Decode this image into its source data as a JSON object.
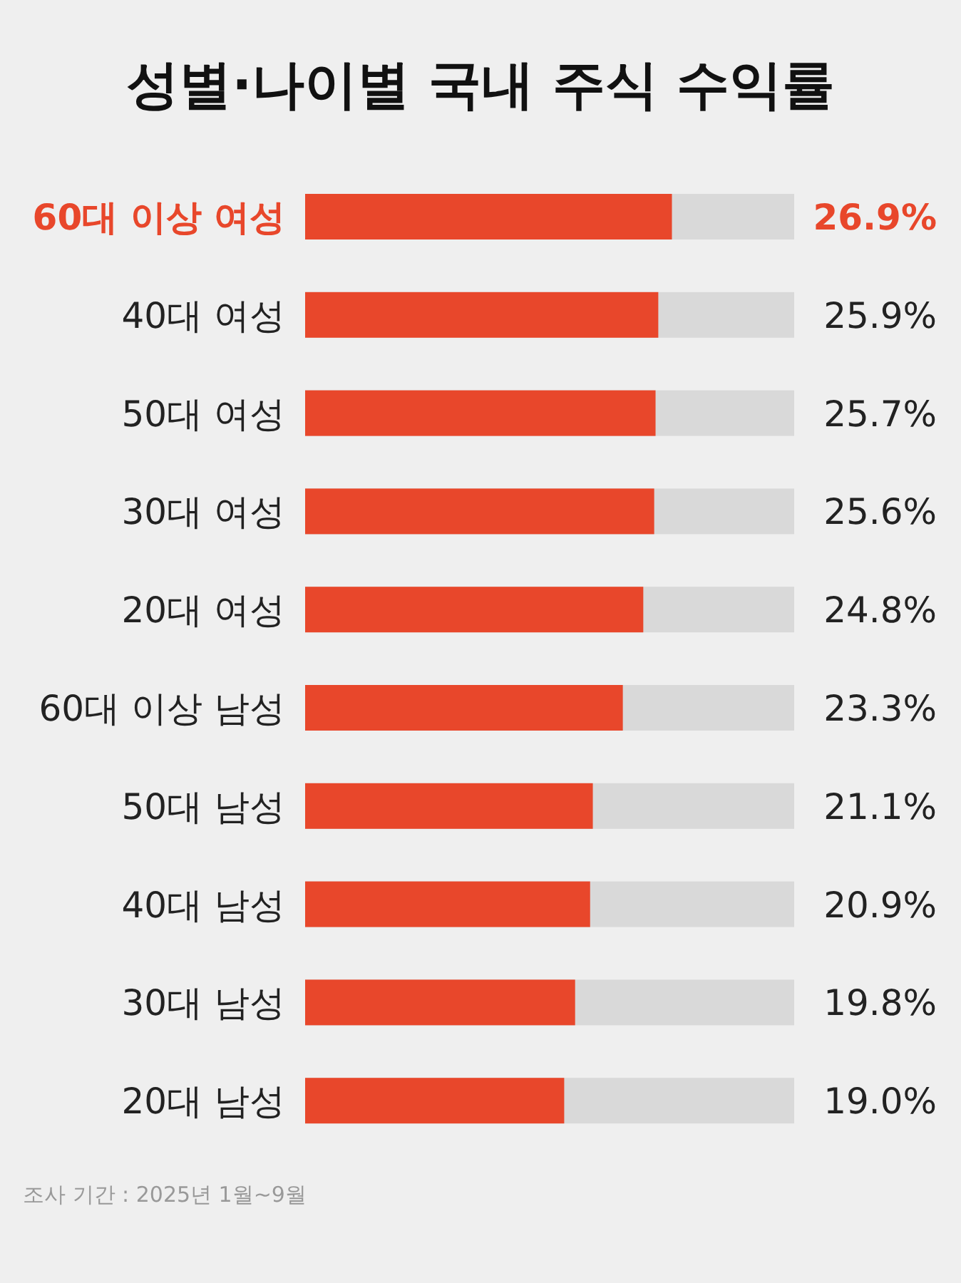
{
  "chart_data": {
    "type": "bar",
    "orientation": "horizontal",
    "title": "성별·나이별 국내 주식 수익률",
    "categories": [
      "60대 이상 여성",
      "40대 여성",
      "50대 여성",
      "30대 여성",
      "20대 여성",
      "60대 이상 남성",
      "50대 남성",
      "40대 남성",
      "30대 남성",
      "20대 남성"
    ],
    "values": [
      26.9,
      25.9,
      25.7,
      25.6,
      24.8,
      23.3,
      21.1,
      20.9,
      19.8,
      19.0
    ],
    "color": "#e8472b",
    "value_labels": [
      "26.9%",
      "25.9%",
      "25.7%",
      "25.6%",
      "24.8%",
      "23.3%",
      "21.1%",
      "20.9%",
      "19.8%",
      "19.0%"
    ],
    "annotations": [
      "조사 기간 : 2025년 1월~9월"
    ]
  }
}
